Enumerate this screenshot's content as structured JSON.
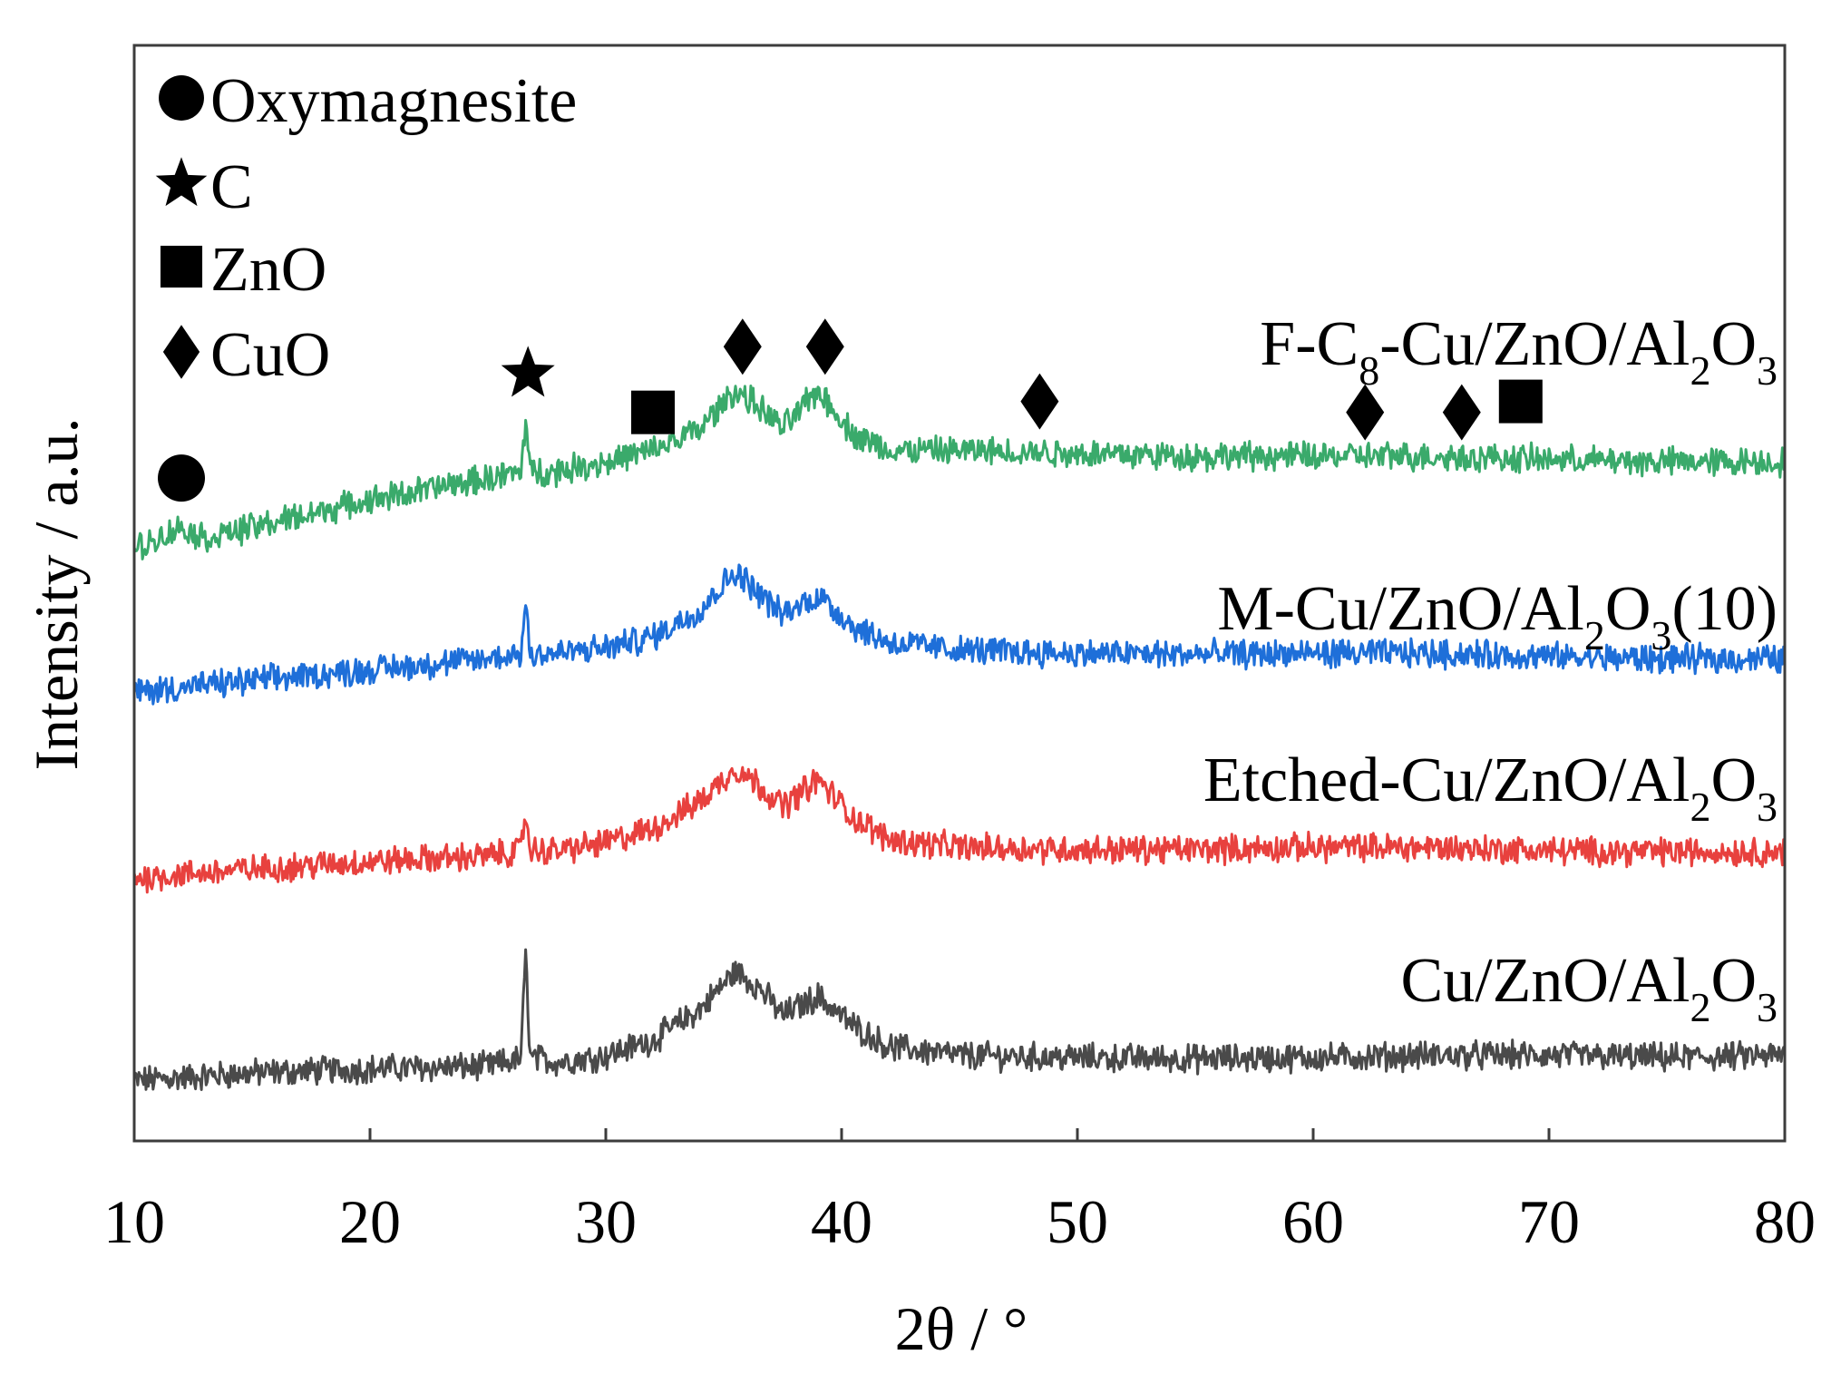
{
  "chart_data": {
    "type": "line",
    "title": "",
    "xlabel": "2θ / °",
    "ylabel": "Intensity / a.u.",
    "xlim": [
      10,
      80
    ],
    "ylim": [
      0,
      10
    ],
    "x_ticks": [
      10,
      20,
      30,
      40,
      50,
      60,
      70,
      80
    ],
    "y_ticks_shown": false,
    "grid": false,
    "legend": {
      "placement": "top-left",
      "entries": [
        {
          "marker": "circle",
          "label": "Oxymagnesite"
        },
        {
          "marker": "star",
          "label": "C"
        },
        {
          "marker": "square",
          "label": "ZnO"
        },
        {
          "marker": "diamond",
          "label": "CuO"
        }
      ]
    },
    "series": [
      {
        "name": "Cu/ZnO/Al2O3",
        "label_parts": [
          {
            "t": "Cu/ZnO/Al"
          },
          {
            "t": "2",
            "sub": true
          },
          {
            "t": "O"
          },
          {
            "t": "3",
            "sub": true
          }
        ],
        "color": "#4a4a4a",
        "baseline": 0.8,
        "x": [
          10,
          15,
          20,
          25,
          26.4,
          26.6,
          26.8,
          28,
          30,
          32,
          34,
          35.5,
          36.5,
          37.5,
          39,
          40.5,
          42,
          45,
          50,
          55,
          60,
          65,
          70,
          75,
          80
        ],
        "y": [
          0.55,
          0.62,
          0.66,
          0.68,
          0.75,
          1.7,
          0.76,
          0.72,
          0.78,
          0.92,
          1.2,
          1.55,
          1.4,
          1.15,
          1.32,
          1.05,
          0.86,
          0.78,
          0.76,
          0.75,
          0.76,
          0.78,
          0.78,
          0.76,
          0.78
        ]
      },
      {
        "name": "Etched-Cu/ZnO/Al2O3",
        "label_parts": [
          {
            "t": "Etched-Cu/ZnO/Al"
          },
          {
            "t": "2",
            "sub": true
          },
          {
            "t": "O"
          },
          {
            "t": "3",
            "sub": true
          }
        ],
        "color": "#e8413e",
        "baseline": 2.6,
        "x": [
          10,
          15,
          20,
          25,
          26.4,
          26.6,
          26.8,
          28,
          30,
          32,
          34,
          35.5,
          36.5,
          37.5,
          39,
          40.5,
          42,
          45,
          50,
          55,
          60,
          65,
          70,
          75,
          80
        ],
        "y": [
          2.4,
          2.48,
          2.55,
          2.6,
          2.65,
          3.0,
          2.65,
          2.65,
          2.72,
          2.85,
          3.1,
          3.4,
          3.25,
          3.05,
          3.3,
          2.95,
          2.75,
          2.68,
          2.66,
          2.66,
          2.68,
          2.68,
          2.65,
          2.64,
          2.64
        ]
      },
      {
        "name": "M-Cu/ZnO/Al2O3(10)",
        "label_parts": [
          {
            "t": "M-Cu/ZnO/Al"
          },
          {
            "t": "2",
            "sub": true
          },
          {
            "t": "O"
          },
          {
            "t": "3",
            "sub": true
          },
          {
            "t": "(10)"
          }
        ],
        "color": "#1e6fd9",
        "baseline": 4.3,
        "x": [
          10,
          15,
          20,
          25,
          26.4,
          26.6,
          26.8,
          28,
          30,
          32,
          34,
          35.5,
          36.5,
          37.5,
          39,
          40.5,
          42,
          45,
          50,
          55,
          60,
          65,
          70,
          75,
          80
        ],
        "y": [
          4.1,
          4.2,
          4.3,
          4.4,
          4.45,
          4.9,
          4.45,
          4.45,
          4.5,
          4.6,
          4.85,
          5.2,
          5.0,
          4.8,
          4.98,
          4.7,
          4.55,
          4.48,
          4.45,
          4.44,
          4.45,
          4.45,
          4.42,
          4.4,
          4.4
        ]
      },
      {
        "name": "F-C8-Cu/ZnO/Al2O3",
        "label_parts": [
          {
            "t": "F-C"
          },
          {
            "t": "8",
            "sub": true
          },
          {
            "t": "-Cu/ZnO/Al"
          },
          {
            "t": "2",
            "sub": true
          },
          {
            "t": "O"
          },
          {
            "t": "3",
            "sub": true
          }
        ],
        "color": "#3aaa6b",
        "baseline": 5.6,
        "x": [
          10,
          12,
          13,
          15,
          20,
          25,
          26.4,
          26.6,
          26.8,
          28,
          30,
          32,
          34,
          35.5,
          36.5,
          37.5,
          39,
          40.5,
          42,
          45,
          50,
          55,
          60,
          65,
          70,
          75,
          80
        ],
        "y": [
          5.4,
          5.6,
          5.5,
          5.6,
          5.85,
          6.05,
          6.1,
          6.6,
          6.1,
          6.12,
          6.2,
          6.3,
          6.5,
          6.85,
          6.7,
          6.5,
          6.85,
          6.45,
          6.3,
          6.3,
          6.28,
          6.25,
          6.25,
          6.25,
          6.22,
          6.2,
          6.2
        ]
      }
    ],
    "peak_markers": [
      {
        "marker": "circle",
        "x": 12.0,
        "y": 6.05
      },
      {
        "marker": "star",
        "x": 26.7,
        "y": 7.0
      },
      {
        "marker": "square",
        "x": 32.0,
        "y": 6.65
      },
      {
        "marker": "diamond",
        "x": 35.8,
        "y": 7.25
      },
      {
        "marker": "diamond",
        "x": 39.3,
        "y": 7.25
      },
      {
        "marker": "diamond",
        "x": 48.4,
        "y": 6.75
      },
      {
        "marker": "diamond",
        "x": 62.2,
        "y": 6.65
      },
      {
        "marker": "diamond",
        "x": 66.3,
        "y": 6.65
      },
      {
        "marker": "square",
        "x": 68.8,
        "y": 6.75
      }
    ]
  }
}
